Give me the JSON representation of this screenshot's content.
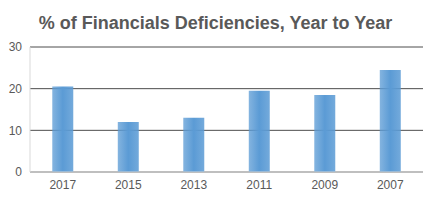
{
  "chart_data": {
    "type": "bar",
    "title": "% of Financials Deficiencies, Year to Year",
    "categories": [
      "2017",
      "2015",
      "2013",
      "2011",
      "2009",
      "2007"
    ],
    "values": [
      20.5,
      12,
      13,
      19.5,
      18.5,
      24.5
    ],
    "color": "#5b9bd5",
    "ylim": [
      0,
      30
    ],
    "yticks": [
      0,
      10,
      20,
      30
    ],
    "grid": true
  }
}
